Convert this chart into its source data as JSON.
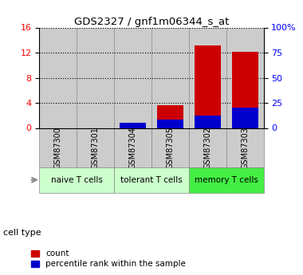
{
  "title": "GDS2327 / gnf1m06344_s_at",
  "samples": [
    "GSM87300",
    "GSM87301",
    "GSM87304",
    "GSM87305",
    "GSM87302",
    "GSM87303"
  ],
  "count_values": [
    0.0,
    0.0,
    0.35,
    3.6,
    13.2,
    12.1
  ],
  "percentile_values": [
    0.0,
    0.0,
    5.0,
    8.5,
    12.0,
    20.0
  ],
  "left_ylim": [
    0,
    16
  ],
  "left_yticks": [
    0,
    4,
    8,
    12,
    16
  ],
  "right_ylim": [
    0,
    100
  ],
  "right_yticks": [
    0,
    25,
    50,
    75,
    100
  ],
  "right_yticklabels": [
    "0",
    "25",
    "50",
    "75",
    "100%"
  ],
  "bar_width": 0.7,
  "count_color": "#cc0000",
  "percentile_color": "#0000cc",
  "col_bg_color": "#cccccc",
  "col_border_color": "#888888",
  "group_configs": [
    {
      "indices": [
        0,
        1
      ],
      "label": "naive T cells",
      "color": "#ccffcc"
    },
    {
      "indices": [
        2,
        3
      ],
      "label": "tolerant T cells",
      "color": "#ccffcc"
    },
    {
      "indices": [
        4,
        5
      ],
      "label": "memory T cells",
      "color": "#44ee44"
    }
  ],
  "legend_count_label": "count",
  "legend_pct_label": "percentile rank within the sample",
  "cell_type_label": "cell type"
}
